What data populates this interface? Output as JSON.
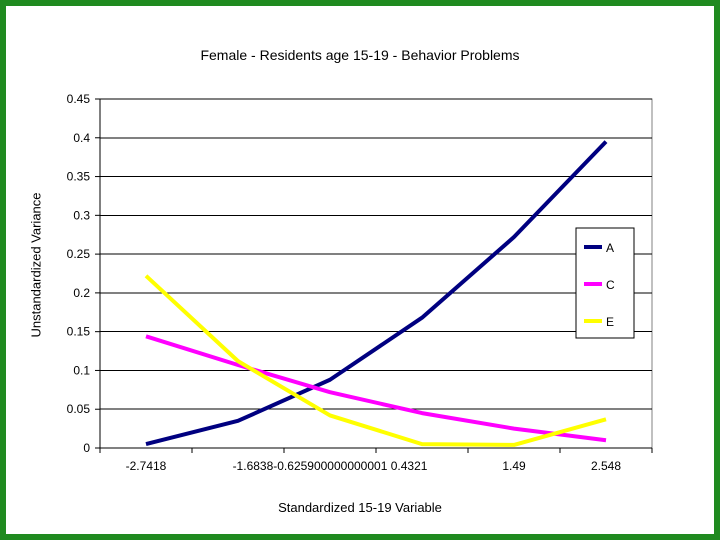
{
  "chart_data": {
    "type": "line",
    "title": "Female - Residents age 15-19 - Behavior Problems",
    "xlabel": "Standardized 15-19 Variable",
    "ylabel": "Unstandardized Variance",
    "categories": [
      "-2.7418",
      "-1.6838",
      "-0.625900000000001",
      "0.4321",
      "1.49",
      "2.548"
    ],
    "tick_labels": [
      "-2.7418",
      "-1.6838-0.625900000000001 0.4321",
      "1.49",
      "2.548"
    ],
    "yticks": [
      "0",
      "0.05",
      "0.1",
      "0.15",
      "0.2",
      "0.25",
      "0.3",
      "0.35",
      "0.4",
      "0.45"
    ],
    "ylim": [
      0,
      0.45
    ],
    "grid": "horizontal",
    "legend_position": "right",
    "series": [
      {
        "name": "A",
        "color": "#000080",
        "values": [
          0.005,
          0.035,
          0.088,
          0.168,
          0.272,
          0.395
        ]
      },
      {
        "name": "C",
        "color": "#ff00ff",
        "values": [
          0.144,
          0.107,
          0.072,
          0.045,
          0.025,
          0.01
        ]
      },
      {
        "name": "E",
        "color": "#ffff00",
        "values": [
          0.222,
          0.112,
          0.042,
          0.005,
          0.004,
          0.037
        ]
      }
    ]
  }
}
